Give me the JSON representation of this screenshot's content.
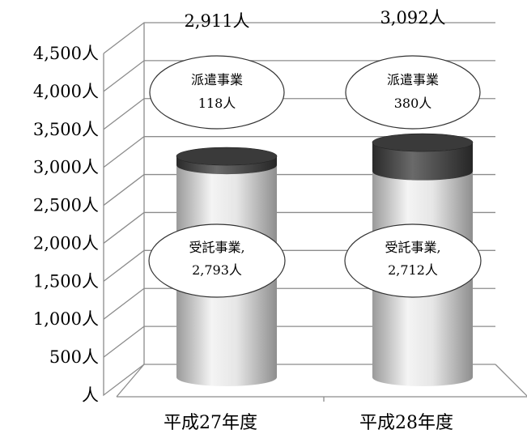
{
  "chart_data": {
    "type": "bar",
    "stacked": true,
    "style": "3d-cylinder",
    "categories": [
      "平成27年度",
      "平成28年度"
    ],
    "series": [
      {
        "name": "受託事業",
        "values": [
          2793,
          2712
        ],
        "labels": [
          "受託事業,",
          "受託事業,"
        ],
        "value_labels": [
          "2,793人",
          "2,712人"
        ],
        "color": "#d9d9d9"
      },
      {
        "name": "派遣事業",
        "values": [
          118,
          380
        ],
        "labels": [
          "派遣事業",
          "派遣事業"
        ],
        "value_labels": [
          "118人",
          "380人"
        ],
        "color": "#4a4a4a"
      }
    ],
    "totals": [
      2911,
      3092
    ],
    "total_labels": [
      "2,911人",
      "3,092人"
    ],
    "ylim": [
      0,
      4500
    ],
    "yticks": [
      0,
      500,
      1000,
      1500,
      2000,
      2500,
      3000,
      3500,
      4000,
      4500
    ],
    "ytick_labels": [
      "人",
      "500人",
      "1,000人",
      "1,500人",
      "2,000人",
      "2,500人",
      "3,000人",
      "3,500人",
      "4,000人",
      "4,500人"
    ],
    "grid": true,
    "legend": "none"
  }
}
